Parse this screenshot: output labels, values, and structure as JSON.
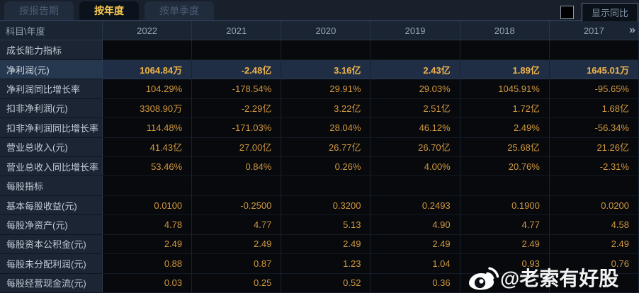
{
  "tabs": [
    {
      "label": "按报告期",
      "active": false
    },
    {
      "label": "按年度",
      "active": true
    },
    {
      "label": "按单季度",
      "active": false
    }
  ],
  "controls": {
    "show_yoy_label": "显示同比",
    "checkbox_checked": false
  },
  "table": {
    "corner_header": "科目\\年度",
    "year_headers": [
      "2022",
      "2021",
      "2020",
      "2019",
      "2018",
      "2017"
    ],
    "more_icon": "»",
    "rows": [
      {
        "type": "section",
        "label": "成长能力指标",
        "values": [
          "",
          "",
          "",
          "",
          "",
          ""
        ]
      },
      {
        "type": "data",
        "highlight": true,
        "label": "净利润(元)",
        "values": [
          "1064.84万",
          "-2.48亿",
          "3.16亿",
          "2.43亿",
          "1.89亿",
          "1645.01万"
        ]
      },
      {
        "type": "data",
        "label": "净利润同比增长率",
        "values": [
          "104.29%",
          "-178.54%",
          "29.91%",
          "29.03%",
          "1045.91%",
          "-95.65%"
        ]
      },
      {
        "type": "data",
        "label": "扣非净利润(元)",
        "values": [
          "3308.90万",
          "-2.29亿",
          "3.22亿",
          "2.51亿",
          "1.72亿",
          "1.68亿"
        ]
      },
      {
        "type": "data",
        "label": "扣非净利润同比增长率",
        "values": [
          "114.48%",
          "-171.03%",
          "28.04%",
          "46.12%",
          "2.49%",
          "-56.34%"
        ]
      },
      {
        "type": "data",
        "label": "营业总收入(元)",
        "values": [
          "41.43亿",
          "27.00亿",
          "26.77亿",
          "26.70亿",
          "25.68亿",
          "21.26亿"
        ]
      },
      {
        "type": "data",
        "label": "营业总收入同比增长率",
        "values": [
          "53.46%",
          "0.84%",
          "0.26%",
          "4.00%",
          "20.76%",
          "-2.31%"
        ]
      },
      {
        "type": "section",
        "label": "每股指标",
        "values": [
          "",
          "",
          "",
          "",
          "",
          ""
        ]
      },
      {
        "type": "data",
        "label": "基本每股收益(元)",
        "values": [
          "0.0100",
          "-0.2500",
          "0.3200",
          "0.2493",
          "0.1900",
          "0.0200"
        ]
      },
      {
        "type": "data",
        "label": "每股净资产(元)",
        "values": [
          "4.78",
          "4.77",
          "5.13",
          "4.90",
          "4.77",
          "4.58"
        ]
      },
      {
        "type": "data",
        "label": "每股资本公积金(元)",
        "values": [
          "2.49",
          "2.49",
          "2.49",
          "2.49",
          "2.49",
          "2.49"
        ]
      },
      {
        "type": "data",
        "label": "每股未分配利润(元)",
        "values": [
          "0.88",
          "0.87",
          "1.23",
          "1.04",
          "0.93",
          "0.76"
        ]
      },
      {
        "type": "data",
        "label": "每股经营现金流(元)",
        "values": [
          "0.03",
          "0.25",
          "0.52",
          "0.36",
          "",
          ""
        ]
      }
    ]
  },
  "watermark": {
    "icon": "weibo-icon",
    "text": "@老索有好股"
  },
  "colors": {
    "value_gold": "#d2983f",
    "highlight_gold": "#f0b44a",
    "tab_active_text": "#f8c94f",
    "label_text": "#c2ccd6",
    "header_text": "#95a4b6",
    "row_highlight_bg": "#1f2d45",
    "label_col_bg": "#1b2534",
    "value_col_bg": "#07090c"
  }
}
